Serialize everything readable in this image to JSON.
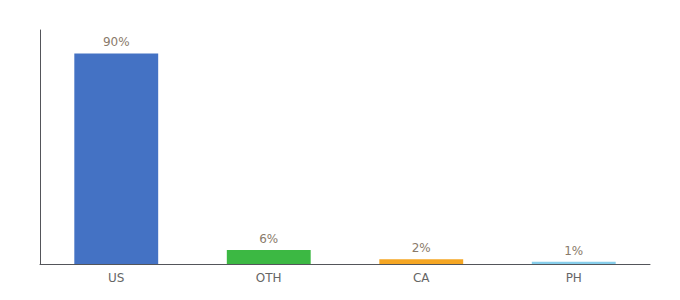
{
  "chart_data": {
    "type": "bar",
    "categories": [
      "US",
      "OTH",
      "CA",
      "PH"
    ],
    "values": [
      90,
      6,
      2,
      1
    ],
    "value_labels": [
      "90%",
      "6%",
      "2%",
      "1%"
    ],
    "colors": [
      "#4472c4",
      "#3cb843",
      "#f5a623",
      "#87ceeb"
    ],
    "ylim": [
      0,
      100
    ],
    "grid": false,
    "data_labels": true,
    "tick_labels": "x"
  }
}
